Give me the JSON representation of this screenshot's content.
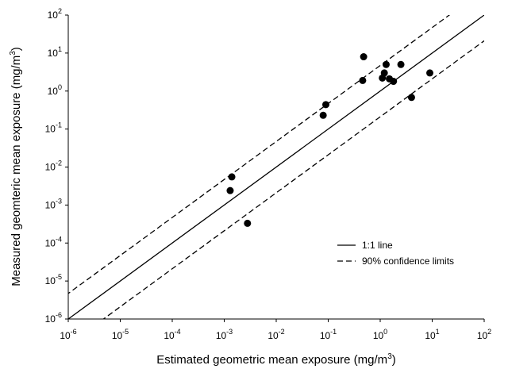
{
  "chart_data": {
    "type": "scatter",
    "xlabel": "Estimated geometric mean exposure (mg/m",
    "xlabel_sup": "3",
    "xlabel_close": ")",
    "ylabel": "Measured geomteric mean exposure (mg/m",
    "ylabel_sup": "3",
    "ylabel_close": ")",
    "x_scale": "log",
    "y_scale": "log",
    "xlim": [
      1e-06,
      100
    ],
    "ylim": [
      1e-06,
      100
    ],
    "grid": false,
    "legend_position": "bottom-right",
    "x_ticks": [
      {
        "base": "10",
        "exp": "-6"
      },
      {
        "base": "10",
        "exp": "-5"
      },
      {
        "base": "10",
        "exp": "-4"
      },
      {
        "base": "10",
        "exp": "-3"
      },
      {
        "base": "10",
        "exp": "-2"
      },
      {
        "base": "10",
        "exp": "-1"
      },
      {
        "base": "10",
        "exp": "0"
      },
      {
        "base": "10",
        "exp": "1"
      },
      {
        "base": "10",
        "exp": "2"
      }
    ],
    "y_ticks": [
      {
        "base": "10",
        "exp": "-6"
      },
      {
        "base": "10",
        "exp": "-5"
      },
      {
        "base": "10",
        "exp": "-4"
      },
      {
        "base": "10",
        "exp": "-3"
      },
      {
        "base": "10",
        "exp": "-2"
      },
      {
        "base": "10",
        "exp": "-1"
      },
      {
        "base": "10",
        "exp": "0"
      },
      {
        "base": "10",
        "exp": "1"
      },
      {
        "base": "10",
        "exp": "2"
      }
    ],
    "tick_exponents": [
      -6,
      -5,
      -4,
      -3,
      -2,
      -1,
      0,
      1,
      2
    ],
    "points": [
      {
        "x": 0.0013,
        "y": 0.0024
      },
      {
        "x": 0.0014,
        "y": 0.0055
      },
      {
        "x": 0.0028,
        "y": 0.00033
      },
      {
        "x": 0.08,
        "y": 0.23
      },
      {
        "x": 0.09,
        "y": 0.44
      },
      {
        "x": 0.48,
        "y": 8.0
      },
      {
        "x": 0.46,
        "y": 1.9
      },
      {
        "x": 1.1,
        "y": 2.2
      },
      {
        "x": 1.2,
        "y": 3.0
      },
      {
        "x": 1.3,
        "y": 5.0
      },
      {
        "x": 1.5,
        "y": 2.1
      },
      {
        "x": 1.8,
        "y": 1.8
      },
      {
        "x": 2.5,
        "y": 5.0
      },
      {
        "x": 4.0,
        "y": 0.68
      },
      {
        "x": 9.0,
        "y": 3.0
      }
    ],
    "lines": [
      {
        "name": "1:1 line",
        "style": "solid",
        "factor": 1
      },
      {
        "name": "90% confidence limits",
        "style": "dashed",
        "factor": 4.7
      },
      {
        "name": "90% confidence limits",
        "style": "dashed",
        "factor": 0.21
      }
    ],
    "legend": [
      {
        "label": "1:1 line",
        "style": "solid"
      },
      {
        "label": "90% confidence limits",
        "style": "dashed"
      }
    ]
  }
}
